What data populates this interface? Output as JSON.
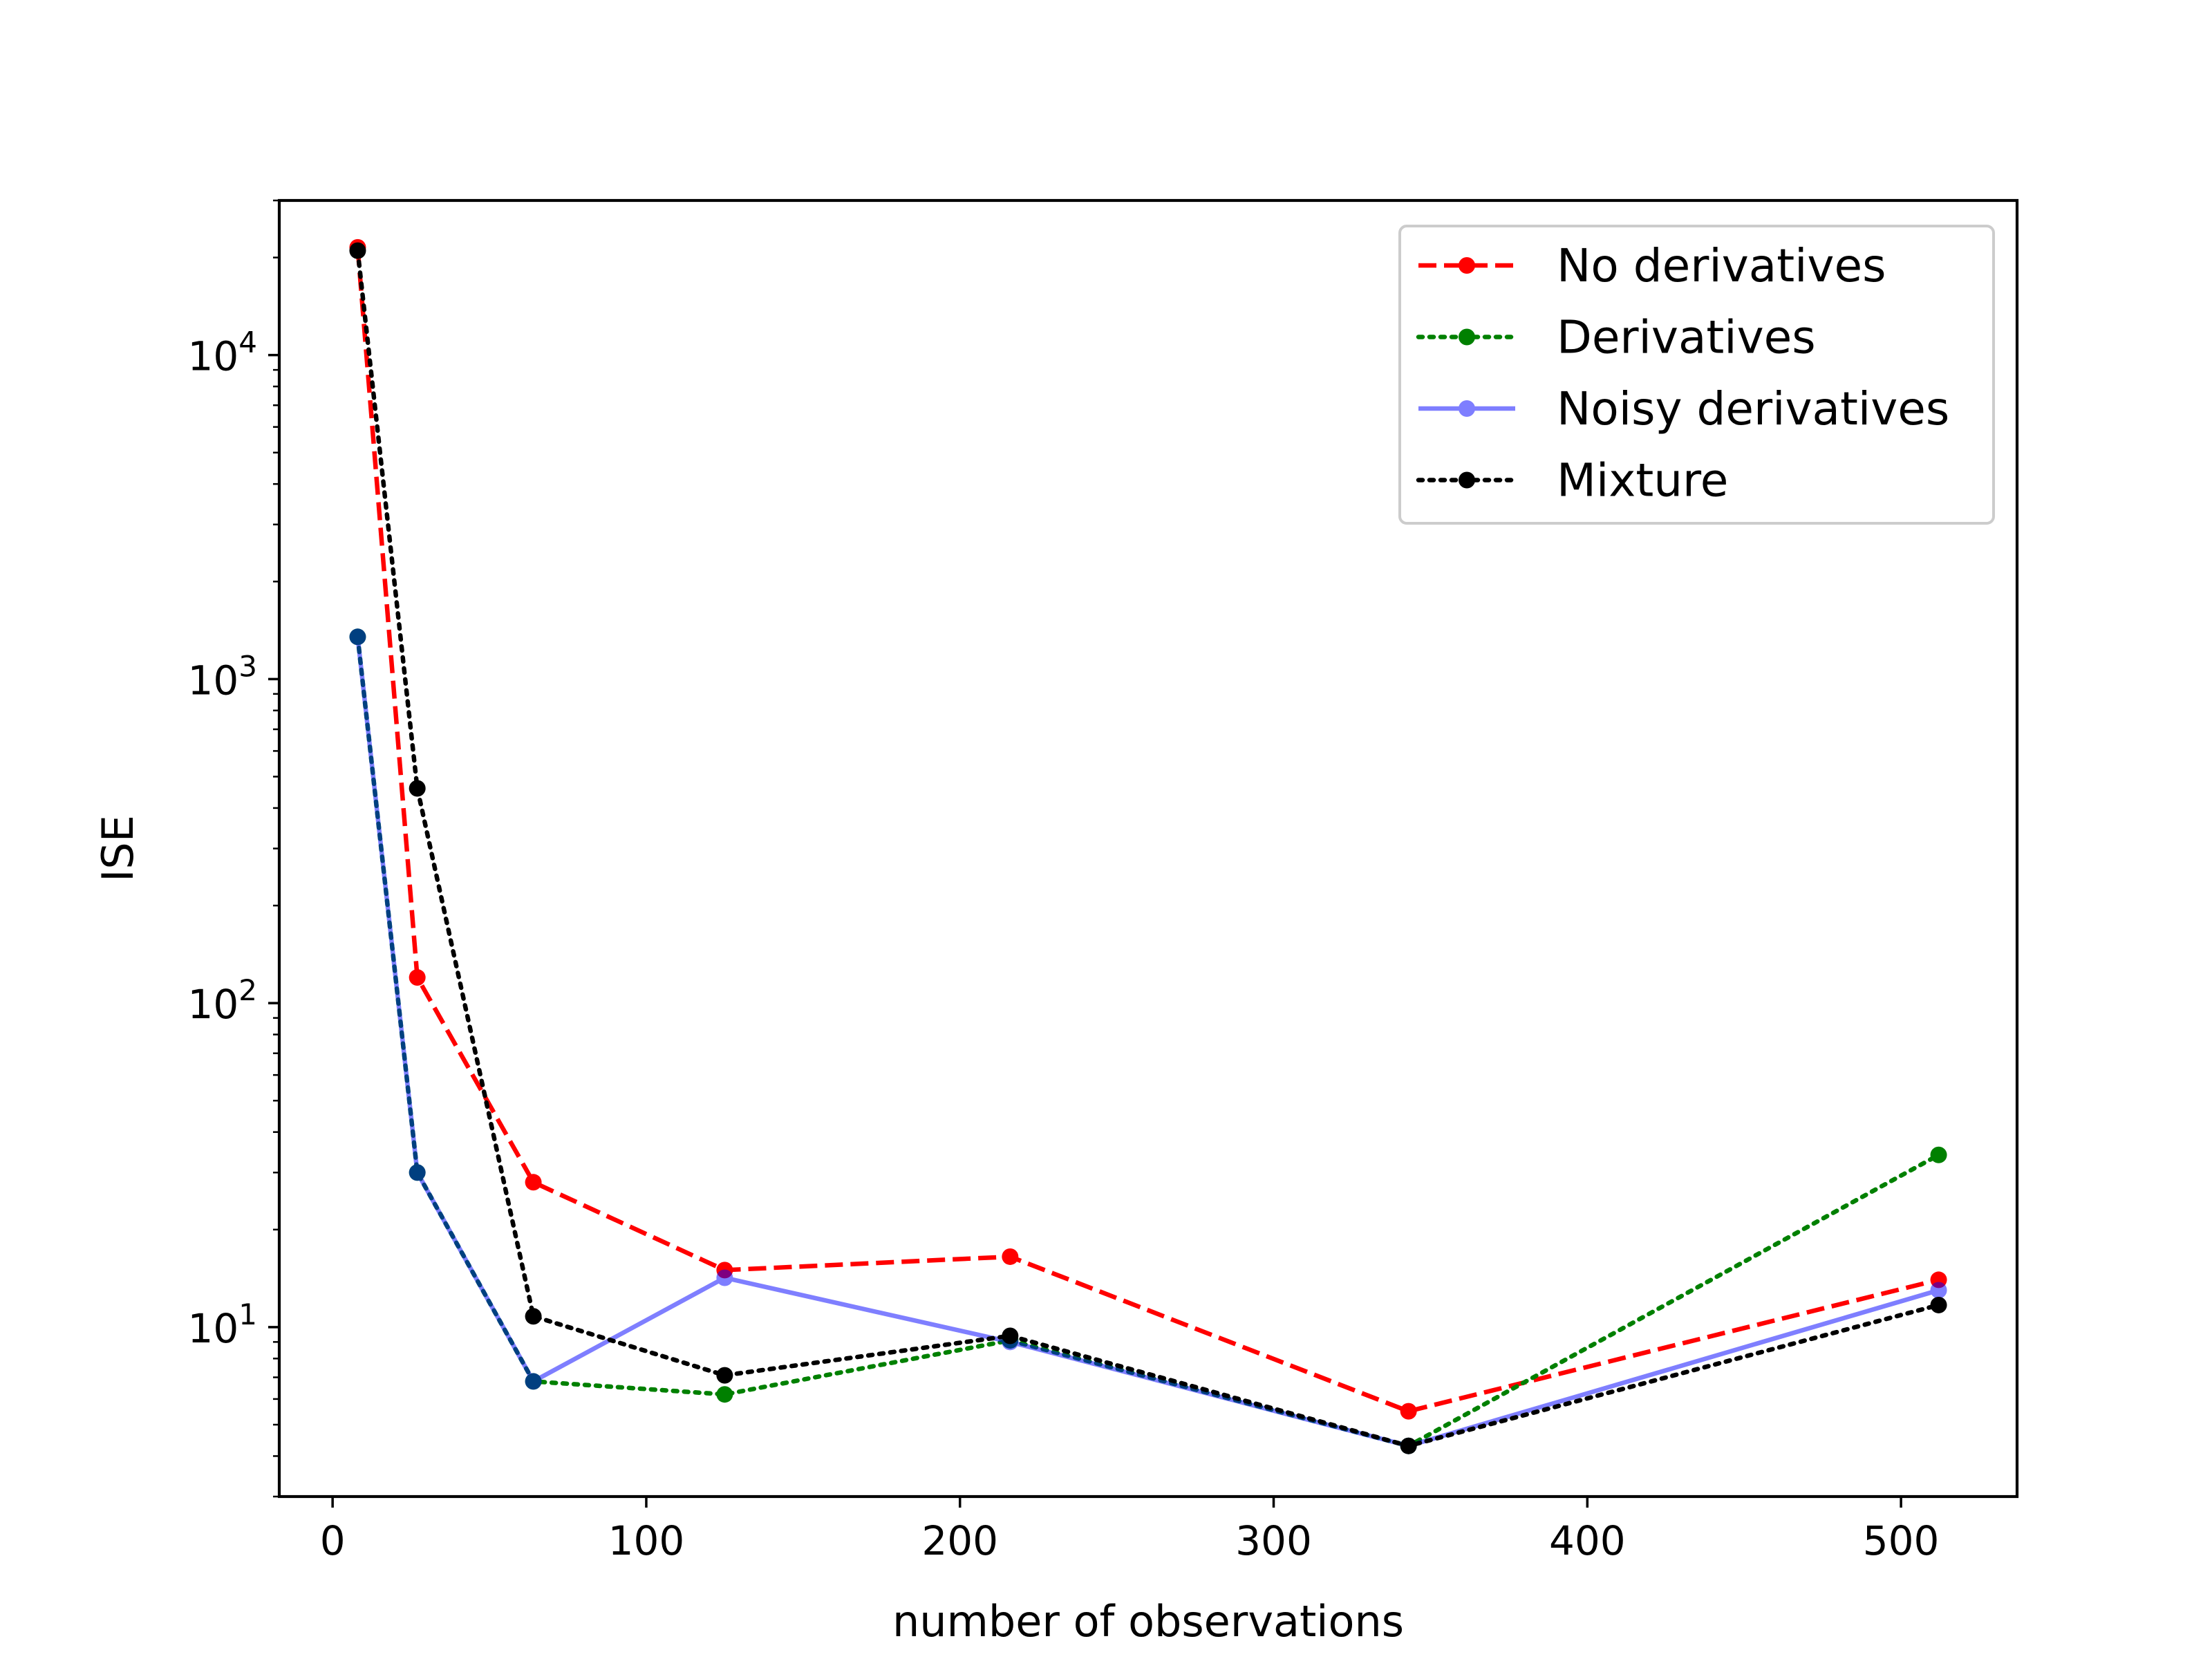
{
  "chart_data": {
    "type": "line",
    "title": "",
    "xlabel": "number of observations",
    "ylabel": "ISE",
    "xlim": [
      -17,
      537
    ],
    "ylim": [
      3.0,
      30000
    ],
    "yscale": "log",
    "xticks": [
      0,
      100,
      200,
      300,
      400,
      500
    ],
    "xtick_labels": [
      "0",
      "100",
      "200",
      "300",
      "400",
      "500"
    ],
    "yticks": [
      {
        "value": 10,
        "base": "10",
        "exp": "1"
      },
      {
        "value": 100,
        "base": "10",
        "exp": "2"
      },
      {
        "value": 1000,
        "base": "10",
        "exp": "3"
      },
      {
        "value": 10000,
        "base": "10",
        "exp": "4"
      }
    ],
    "legend_position": "top-right",
    "x": [
      8,
      27,
      64,
      125,
      216,
      343,
      512
    ],
    "series": [
      {
        "name": "No derivatives",
        "color": "#ff0000",
        "style": "dashed",
        "opacity": 1,
        "values": [
          21500,
          120,
          28,
          15,
          16.5,
          5.5,
          14
        ]
      },
      {
        "name": "Derivatives",
        "color": "#008000",
        "style": "dotted",
        "opacity": 1,
        "values": [
          1350,
          30,
          6.8,
          6.2,
          9.1,
          4.3,
          34
        ]
      },
      {
        "name": "Noisy derivatives",
        "color": "#0000ff",
        "style": "solid",
        "opacity": 0.5,
        "values": [
          1350,
          30,
          6.8,
          14.2,
          9.0,
          4.3,
          13
        ]
      },
      {
        "name": "Mixture",
        "color": "#000000",
        "style": "dotted",
        "opacity": 1,
        "values": [
          21000,
          460,
          10.8,
          7.1,
          9.4,
          4.3,
          11.7
        ]
      }
    ]
  }
}
